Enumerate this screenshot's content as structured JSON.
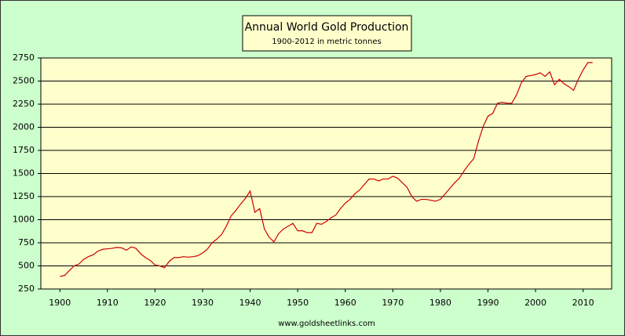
{
  "chart_data": {
    "type": "line",
    "title": "Annual World Gold Production",
    "subtitle": "1900-2012 in metric tonnes",
    "annotation": "www.goldsheetlinks.com",
    "color": "#cc0000",
    "grid": true,
    "xlim": [
      1896,
      2016
    ],
    "ylim": [
      250,
      2750
    ],
    "xticks": [
      1900,
      1910,
      1920,
      1930,
      1940,
      1950,
      1960,
      1970,
      1980,
      1990,
      2000,
      2010
    ],
    "yticks": [
      250,
      500,
      750,
      1000,
      1250,
      1500,
      1750,
      2000,
      2250,
      2500,
      2750
    ],
    "x": [
      1900,
      1901,
      1902,
      1903,
      1904,
      1905,
      1906,
      1907,
      1908,
      1909,
      1910,
      1911,
      1912,
      1913,
      1914,
      1915,
      1916,
      1917,
      1918,
      1919,
      1920,
      1921,
      1922,
      1923,
      1924,
      1925,
      1926,
      1927,
      1928,
      1929,
      1930,
      1931,
      1932,
      1933,
      1934,
      1935,
      1936,
      1937,
      1938,
      1939,
      1940,
      1941,
      1942,
      1943,
      1944,
      1945,
      1946,
      1947,
      1948,
      1949,
      1950,
      1951,
      1952,
      1953,
      1954,
      1955,
      1956,
      1957,
      1958,
      1959,
      1960,
      1961,
      1962,
      1963,
      1964,
      1965,
      1966,
      1967,
      1968,
      1969,
      1970,
      1971,
      1972,
      1973,
      1974,
      1975,
      1976,
      1977,
      1978,
      1979,
      1980,
      1981,
      1982,
      1983,
      1984,
      1985,
      1986,
      1987,
      1988,
      1989,
      1990,
      1991,
      1992,
      1993,
      1994,
      1995,
      1996,
      1997,
      1998,
      1999,
      2000,
      2001,
      2002,
      2003,
      2004,
      2005,
      2006,
      2007,
      2008,
      2009,
      2010,
      2011,
      2012
    ],
    "values": [
      386,
      396,
      450,
      500,
      520,
      570,
      600,
      620,
      660,
      680,
      685,
      690,
      700,
      695,
      670,
      705,
      690,
      630,
      590,
      560,
      510,
      500,
      480,
      550,
      590,
      590,
      600,
      595,
      600,
      610,
      640,
      680,
      750,
      790,
      840,
      930,
      1040,
      1100,
      1170,
      1230,
      1310,
      1080,
      1120,
      900,
      810,
      760,
      850,
      900,
      930,
      960,
      880,
      880,
      860,
      860,
      960,
      950,
      980,
      1020,
      1050,
      1120,
      1180,
      1220,
      1280,
      1320,
      1380,
      1440,
      1440,
      1420,
      1440,
      1440,
      1470,
      1450,
      1400,
      1350,
      1250,
      1200,
      1220,
      1220,
      1210,
      1200,
      1220,
      1280,
      1340,
      1400,
      1450,
      1530,
      1600,
      1660,
      1850,
      2010,
      2120,
      2150,
      2260,
      2270,
      2260,
      2260,
      2350,
      2480,
      2550,
      2560,
      2570,
      2590,
      2550,
      2600,
      2460,
      2520,
      2470,
      2440,
      2400,
      2520,
      2620,
      2700,
      2700
    ]
  }
}
